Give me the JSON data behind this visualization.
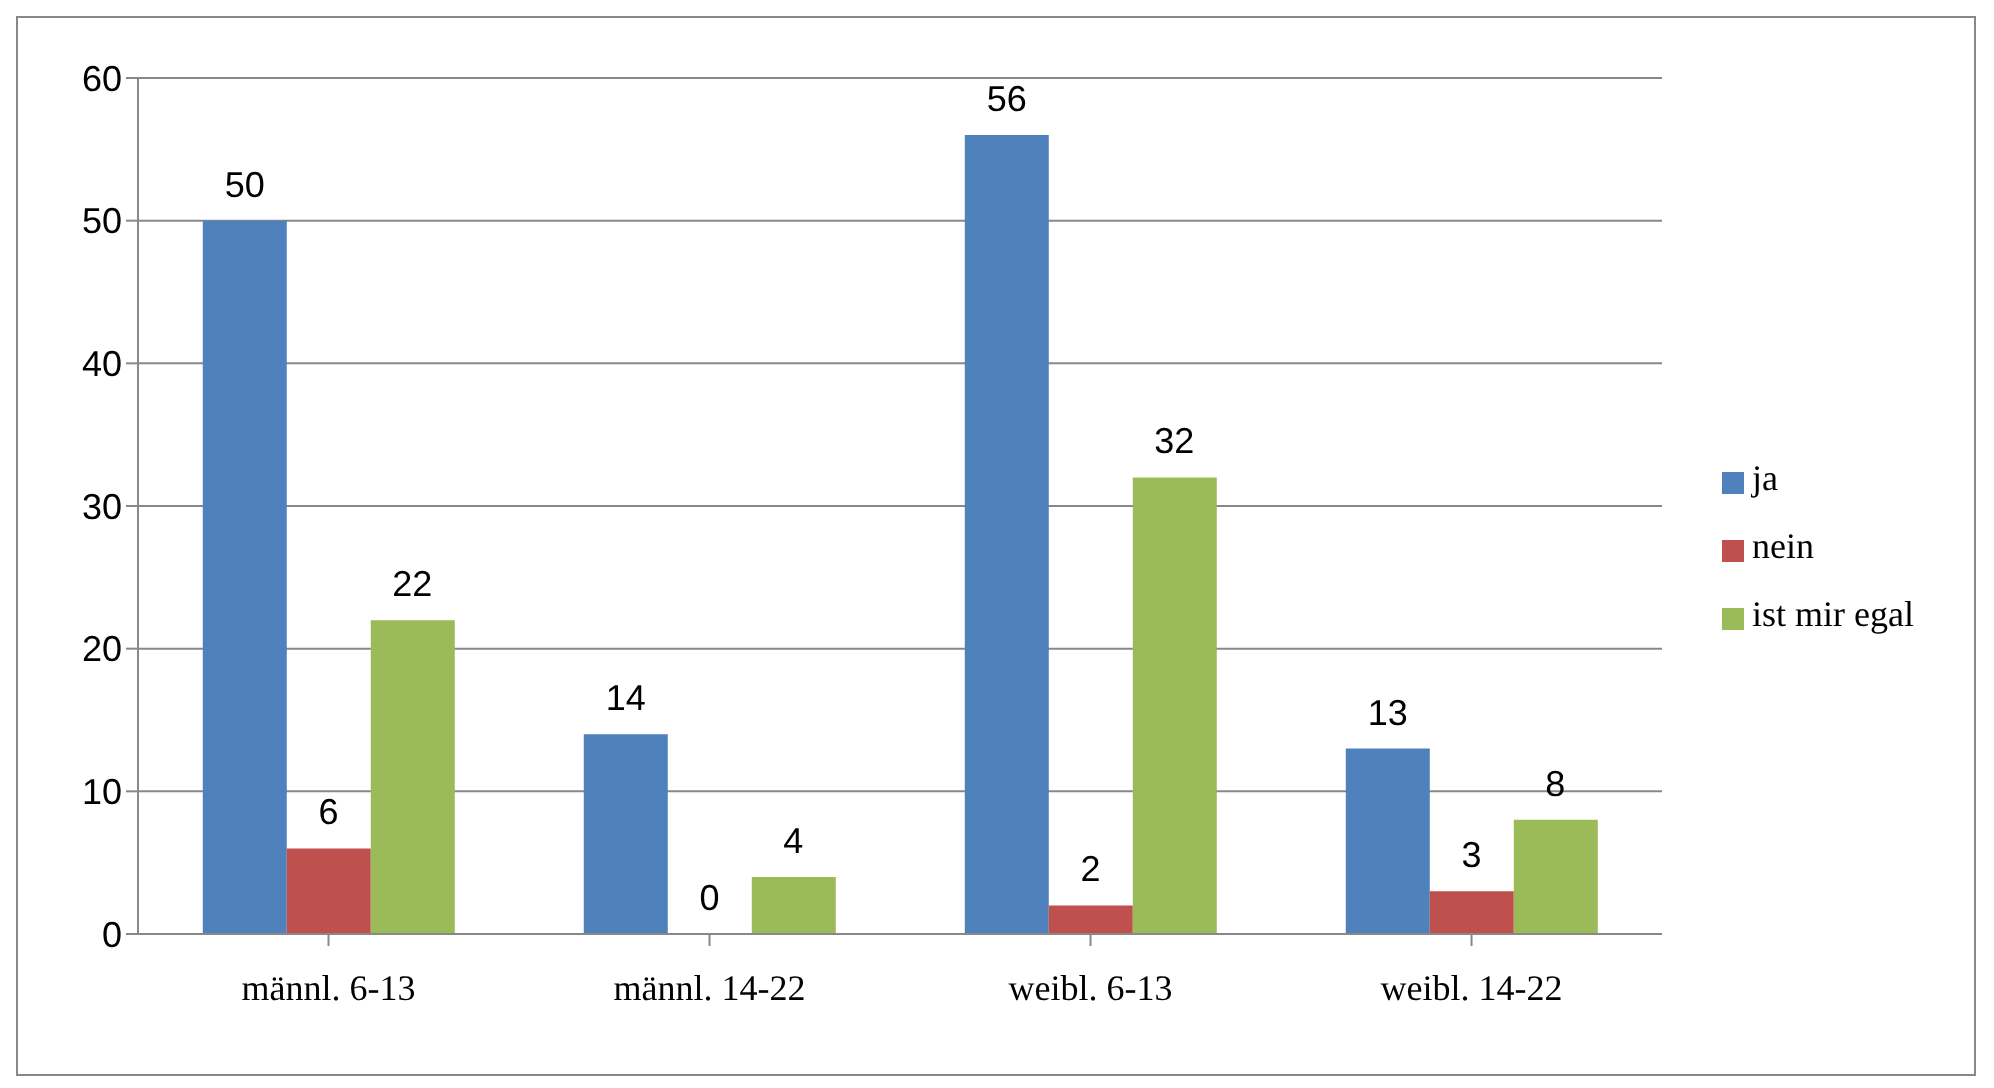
{
  "chart_data": {
    "type": "bar",
    "categories": [
      "männl. 6-13",
      "männl. 14-22",
      "weibl. 6-13",
      "weibl. 14-22"
    ],
    "series": [
      {
        "name": "ja",
        "color": "#4f81bd",
        "values": [
          50,
          14,
          56,
          13
        ]
      },
      {
        "name": "nein",
        "color": "#c0504d",
        "values": [
          6,
          0,
          2,
          3
        ]
      },
      {
        "name": "ist mir egal",
        "color": "#9bbb59",
        "values": [
          22,
          4,
          32,
          8
        ]
      }
    ],
    "ylim": [
      0,
      60
    ],
    "yticks": [
      0,
      10,
      20,
      30,
      40,
      50,
      60
    ],
    "grid": "y",
    "legend": "right",
    "data_labels": true
  }
}
